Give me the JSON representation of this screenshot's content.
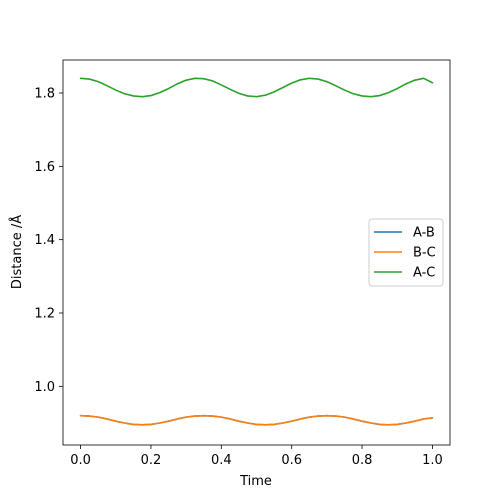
{
  "chart_data": {
    "type": "line",
    "xlabel": "Time",
    "ylabel": "Distance /Å",
    "xlim": [
      -0.05,
      1.05
    ],
    "ylim": [
      0.84,
      1.89
    ],
    "xticks": [
      0.0,
      0.2,
      0.4,
      0.6,
      0.8,
      1.0
    ],
    "xtick_labels": [
      "0.0",
      "0.2",
      "0.4",
      "0.6",
      "0.8",
      "1.0"
    ],
    "yticks": [
      1.0,
      1.2,
      1.4,
      1.6,
      1.8
    ],
    "ytick_labels": [
      "1.0",
      "1.2",
      "1.4",
      "1.6",
      "1.8"
    ],
    "grid": false,
    "legend_position": "right",
    "x": [
      0.0,
      0.025,
      0.05,
      0.075,
      0.1,
      0.125,
      0.15,
      0.175,
      0.2,
      0.225,
      0.25,
      0.275,
      0.3,
      0.325,
      0.35,
      0.375,
      0.4,
      0.425,
      0.45,
      0.475,
      0.5,
      0.525,
      0.55,
      0.575,
      0.6,
      0.625,
      0.65,
      0.675,
      0.7,
      0.725,
      0.75,
      0.775,
      0.8,
      0.825,
      0.85,
      0.875,
      0.9,
      0.925,
      0.95,
      0.975,
      1.0
    ],
    "series": [
      {
        "name": "A-B",
        "color": "#1f77b4",
        "values": [
          0.92,
          0.919,
          0.916,
          0.911,
          0.905,
          0.9,
          0.896,
          0.895,
          0.896,
          0.9,
          0.905,
          0.911,
          0.916,
          0.919,
          0.92,
          0.919,
          0.916,
          0.911,
          0.905,
          0.9,
          0.896,
          0.895,
          0.896,
          0.9,
          0.905,
          0.911,
          0.916,
          0.919,
          0.92,
          0.919,
          0.916,
          0.911,
          0.905,
          0.9,
          0.896,
          0.895,
          0.896,
          0.9,
          0.905,
          0.911,
          0.914
        ]
      },
      {
        "name": "B-C",
        "color": "#ff7f0e",
        "values": [
          0.92,
          0.919,
          0.916,
          0.911,
          0.905,
          0.9,
          0.896,
          0.895,
          0.896,
          0.9,
          0.905,
          0.911,
          0.916,
          0.919,
          0.92,
          0.919,
          0.916,
          0.911,
          0.905,
          0.9,
          0.896,
          0.895,
          0.896,
          0.9,
          0.905,
          0.911,
          0.916,
          0.919,
          0.92,
          0.919,
          0.916,
          0.911,
          0.905,
          0.9,
          0.896,
          0.895,
          0.896,
          0.9,
          0.905,
          0.911,
          0.914
        ]
      },
      {
        "name": "A-C",
        "color": "#2ca02c",
        "values": [
          1.84,
          1.838,
          1.831,
          1.82,
          1.808,
          1.798,
          1.792,
          1.79,
          1.793,
          1.801,
          1.812,
          1.825,
          1.835,
          1.84,
          1.839,
          1.833,
          1.822,
          1.81,
          1.799,
          1.792,
          1.79,
          1.794,
          1.803,
          1.815,
          1.827,
          1.836,
          1.84,
          1.838,
          1.831,
          1.82,
          1.808,
          1.798,
          1.792,
          1.79,
          1.793,
          1.801,
          1.812,
          1.825,
          1.835,
          1.84,
          1.828
        ]
      }
    ]
  }
}
